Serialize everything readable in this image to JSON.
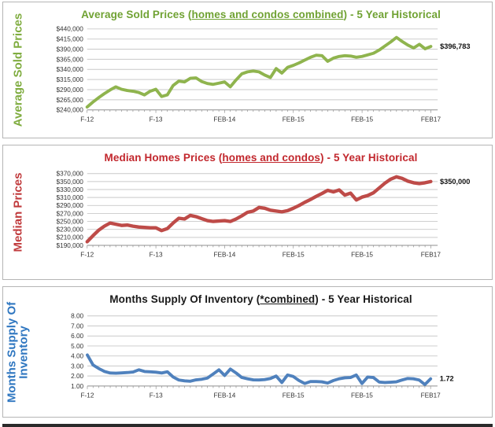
{
  "page": {
    "background": "#ffffff",
    "footer_bar_color": "#2a2a2a"
  },
  "chart_data": [
    {
      "id": "average-sold-prices",
      "type": "line",
      "title": "Average Sold Prices (homes and condos combined) - 5 Year Historical",
      "title_prefix": "Average Sold Prices (",
      "title_underline": "homes and condos combined",
      "title_suffix": ") - 5 Year Historical",
      "title_color": "#70A233",
      "ylabel": "Average Sold Prices",
      "ylabel_color": "#7FAC3F",
      "line_color": "#8FB44E",
      "grid": true,
      "legend": "none",
      "ylim": [
        240000,
        440000
      ],
      "y_tick_labels": [
        "$440,000",
        "$415,000",
        "$390,000",
        "$365,000",
        "$340,000",
        "$315,000",
        "$290,000",
        "$265,000",
        "$240,000"
      ],
      "y_tick_values": [
        440000,
        415000,
        390000,
        365000,
        340000,
        315000,
        290000,
        265000,
        240000
      ],
      "x_tick_labels": [
        "F-12",
        "F-13",
        "FEB-14",
        "FEB-15",
        "FEB-15",
        "FEB17"
      ],
      "x_tick_indices": [
        0,
        12,
        24,
        36,
        48,
        60
      ],
      "x_range_note": "monthly, Feb-2012 through Feb-2017",
      "values": [
        247000,
        259000,
        270000,
        280000,
        289000,
        297000,
        291000,
        288000,
        286000,
        283000,
        277000,
        286000,
        291000,
        273000,
        277000,
        300000,
        311000,
        309000,
        318000,
        319000,
        310000,
        305000,
        303000,
        306000,
        309000,
        297000,
        314000,
        329000,
        334000,
        336000,
        334000,
        326000,
        320000,
        342000,
        331000,
        345000,
        350000,
        356000,
        363000,
        370000,
        375000,
        374000,
        360000,
        368000,
        372000,
        374000,
        373000,
        370000,
        372000,
        376000,
        380000,
        388000,
        398000,
        408000,
        419000,
        409000,
        400000,
        393000,
        402000,
        391000,
        396783
      ],
      "end_label": "$396,783"
    },
    {
      "id": "median-prices",
      "type": "line",
      "title": "Median Homes Prices (homes and condos) - 5 Year Historical",
      "title_prefix": "Median Homes Prices (",
      "title_underline": "homes and condos",
      "title_suffix": ") - 5 Year Historical",
      "title_color": "#C2272D",
      "ylabel": "Median Prices",
      "ylabel_color": "#C03A3C",
      "line_color": "#BE4B48",
      "grid": true,
      "legend": "none",
      "ylim": [
        190000,
        370000
      ],
      "y_tick_labels": [
        "$370,000",
        "$350,000",
        "$330,000",
        "$310,000",
        "$290,000",
        "$270,000",
        "$250,000",
        "$230,000",
        "$210,000",
        "$190,000"
      ],
      "y_tick_values": [
        370000,
        350000,
        330000,
        310000,
        290000,
        270000,
        250000,
        230000,
        210000,
        190000
      ],
      "x_tick_labels": [
        "F-12",
        "F-13",
        "FEB-14",
        "FEB-15",
        "FEB-15",
        "FEB17"
      ],
      "x_tick_indices": [
        0,
        12,
        24,
        36,
        48,
        60
      ],
      "x_range_note": "monthly, Feb-2012 through Feb-2017",
      "values": [
        199000,
        214000,
        228000,
        238000,
        246000,
        243000,
        240000,
        241000,
        238000,
        236000,
        235000,
        234000,
        234000,
        227000,
        232000,
        246000,
        258000,
        256000,
        265000,
        262000,
        257000,
        252000,
        250000,
        251000,
        252000,
        250000,
        256000,
        264000,
        273000,
        276000,
        285000,
        283000,
        278000,
        276000,
        274000,
        277000,
        283000,
        290000,
        298000,
        305000,
        313000,
        320000,
        328000,
        324000,
        329000,
        316000,
        321000,
        304000,
        311000,
        315000,
        322000,
        334000,
        346000,
        356000,
        362000,
        358000,
        351000,
        347000,
        345000,
        347000,
        350000
      ],
      "end_label": "$350,000"
    },
    {
      "id": "months-supply",
      "type": "line",
      "title": "Months Supply Of Inventory (*combined) - 5 Year Historical",
      "title_prefix": "Months Supply Of Inventory (",
      "title_underline": "*combined",
      "title_suffix": ") - 5 Year Historical",
      "title_color": "#1a1a1a",
      "ylabel": "Months Supply Of Inventory",
      "ylabel_color": "#2E76C0",
      "line_color": "#4F81BD",
      "grid": true,
      "legend": "none",
      "ylim": [
        1,
        8
      ],
      "y_tick_labels": [
        "8.00",
        "7.00",
        "6.00",
        "5.00",
        "4.00",
        "3.00",
        "2.00",
        "1.00"
      ],
      "y_tick_values": [
        8,
        7,
        6,
        5,
        4,
        3,
        2,
        1
      ],
      "x_tick_labels": [
        "F-12",
        "F-13",
        "FEB-14",
        "FEB-15",
        "FEB-15",
        "FEB17"
      ],
      "x_tick_indices": [
        0,
        12,
        24,
        36,
        48,
        60
      ],
      "x_range_note": "monthly, Feb-2012 through Feb-2017",
      "values": [
        4.1,
        3.1,
        2.75,
        2.45,
        2.3,
        2.28,
        2.32,
        2.35,
        2.4,
        2.62,
        2.45,
        2.42,
        2.38,
        2.3,
        2.42,
        1.9,
        1.6,
        1.52,
        1.48,
        1.62,
        1.68,
        1.8,
        2.2,
        2.62,
        2.05,
        2.7,
        2.3,
        1.85,
        1.72,
        1.62,
        1.6,
        1.65,
        1.75,
        2.0,
        1.35,
        2.1,
        1.95,
        1.55,
        1.25,
        1.45,
        1.45,
        1.42,
        1.3,
        1.55,
        1.72,
        1.82,
        1.85,
        2.1,
        1.25,
        1.9,
        1.85,
        1.4,
        1.35,
        1.38,
        1.42,
        1.6,
        1.75,
        1.72,
        1.6,
        1.15,
        1.72
      ],
      "end_label": "1.72"
    }
  ]
}
